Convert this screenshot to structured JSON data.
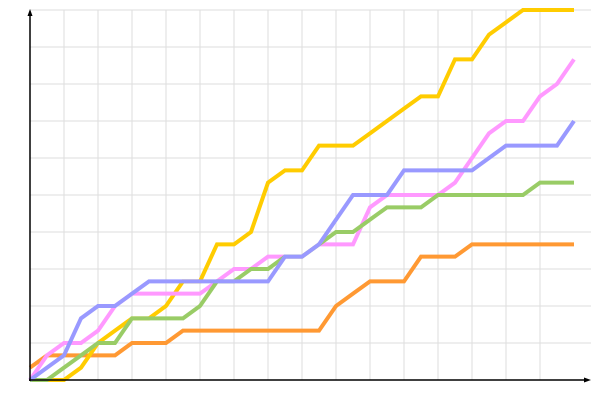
{
  "chart_data": {
    "type": "line",
    "title": "",
    "xlabel": "",
    "ylabel": "",
    "x": [
      0,
      1,
      2,
      3,
      4,
      5,
      6,
      7,
      8,
      9,
      10,
      11,
      12,
      13,
      14,
      15,
      16,
      17,
      18,
      19,
      20,
      21,
      22,
      23,
      24,
      25,
      26,
      27,
      28,
      29,
      30,
      31,
      32
    ],
    "xlim": [
      0,
      32
    ],
    "ylim": [
      0,
      30
    ],
    "grid": true,
    "legend": "none",
    "series": [
      {
        "color": "#ff9933",
        "values": [
          1,
          2,
          2,
          2,
          2,
          2,
          3,
          3,
          3,
          4,
          4,
          4,
          4,
          4,
          4,
          4,
          4,
          4,
          6,
          7,
          8,
          8,
          8,
          10,
          10,
          10,
          11,
          11,
          11,
          11,
          11,
          11,
          11
        ]
      },
      {
        "color": "#ffcc00",
        "values": [
          0,
          0,
          0,
          1,
          3,
          4,
          5,
          5,
          6,
          8,
          8,
          11,
          11,
          12,
          16,
          17,
          17,
          19,
          19,
          19,
          20,
          21,
          22,
          23,
          23,
          26,
          26,
          28,
          29,
          30,
          30,
          30,
          30
        ]
      },
      {
        "color": "#ff99ff",
        "values": [
          0,
          2,
          3,
          3,
          4,
          6,
          7,
          7,
          7,
          7,
          7,
          8,
          9,
          9,
          10,
          10,
          10,
          11,
          11,
          11,
          14,
          15,
          15,
          15,
          15,
          16,
          18,
          20,
          21,
          21,
          23,
          24,
          26
        ]
      },
      {
        "color": "#99cc66",
        "values": [
          0,
          0,
          1,
          2,
          3,
          3,
          5,
          5,
          5,
          5,
          6,
          8,
          8,
          9,
          9,
          10,
          10,
          11,
          12,
          12,
          13,
          14,
          14,
          14,
          15,
          15,
          15,
          15,
          15,
          15,
          16,
          16,
          16
        ]
      },
      {
        "color": "#9999ff",
        "values": [
          0,
          1,
          2,
          5,
          6,
          6,
          7,
          8,
          8,
          8,
          8,
          8,
          8,
          8,
          8,
          10,
          10,
          11,
          13,
          15,
          15,
          15,
          17,
          17,
          17,
          17,
          17,
          18,
          19,
          19,
          19,
          19,
          21
        ]
      }
    ]
  }
}
